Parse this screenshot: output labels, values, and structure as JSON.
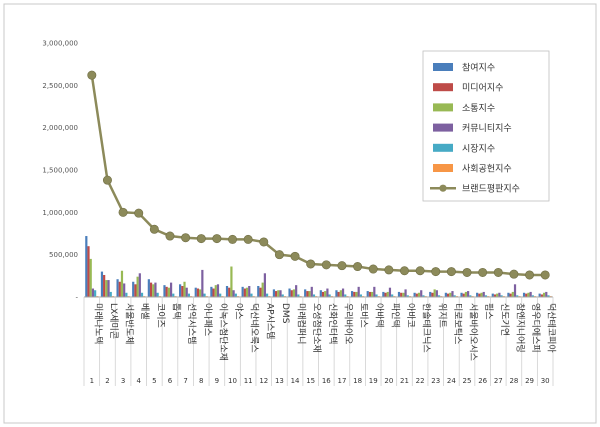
{
  "chart_data": {
    "type": "bar",
    "title": "",
    "xlabel": "",
    "ylabel": "",
    "ylim": [
      0,
      3000000
    ],
    "yticks": [
      0,
      500000,
      1000000,
      1500000,
      2000000,
      2500000,
      3000000
    ],
    "ytick_labels": [
      "-",
      "500,000",
      "1,000,000",
      "1,500,000",
      "2,000,000",
      "2,500,000",
      "3,000,000"
    ],
    "grid": false,
    "legend_position": "top-right",
    "ranks": [
      "1",
      "2",
      "3",
      "4",
      "5",
      "6",
      "7",
      "8",
      "9",
      "10",
      "11",
      "12",
      "13",
      "14",
      "15",
      "16",
      "17",
      "18",
      "19",
      "20",
      "21",
      "22",
      "23",
      "24",
      "25",
      "26",
      "27",
      "28",
      "29",
      "30"
    ],
    "categories": [
      "미래나노텍",
      "LX세미콘",
      "서울반도체",
      "베셀",
      "코이즈",
      "톱텍",
      "선익시스템",
      "아나패스",
      "이녹스첨단소재",
      "야스",
      "덕산네오룩스",
      "AP시스템",
      "DMS",
      "미래컴퍼니",
      "오성첨단소재",
      "신화인터텍",
      "우리바이오",
      "토비스",
      "아바텍",
      "파인텍",
      "아바코",
      "한솔테크닉스",
      "위지트",
      "티로보틱스",
      "서울바이오시스",
      "핌스",
      "신도기연",
      "참엔지니어링",
      "영우디에스피",
      "덕산테코피아"
    ],
    "series": [
      {
        "name": "참여지수",
        "color": "#4a7ebb",
        "chart": "bar",
        "values": [
          720000,
          300000,
          210000,
          180000,
          210000,
          140000,
          150000,
          110000,
          120000,
          130000,
          120000,
          130000,
          90000,
          100000,
          90000,
          80000,
          80000,
          70000,
          70000,
          60000,
          60000,
          50000,
          60000,
          50000,
          50000,
          50000,
          40000,
          50000,
          50000,
          40000
        ]
      },
      {
        "name": "미디어지수",
        "color": "#be4b48",
        "chart": "bar",
        "values": [
          600000,
          260000,
          180000,
          150000,
          170000,
          120000,
          130000,
          100000,
          100000,
          110000,
          100000,
          110000,
          70000,
          80000,
          70000,
          60000,
          60000,
          60000,
          60000,
          50000,
          50000,
          40000,
          50000,
          40000,
          40000,
          40000,
          30000,
          40000,
          40000,
          30000
        ]
      },
      {
        "name": "소통지수",
        "color": "#98b954",
        "chart": "bar",
        "values": [
          450000,
          200000,
          310000,
          240000,
          150000,
          110000,
          180000,
          90000,
          140000,
          360000,
          110000,
          170000,
          80000,
          90000,
          70000,
          70000,
          80000,
          60000,
          60000,
          60000,
          50000,
          50000,
          90000,
          50000,
          60000,
          50000,
          40000,
          60000,
          50000,
          50000
        ]
      },
      {
        "name": "커뮤니티지수",
        "color": "#7d60a0",
        "chart": "bar",
        "values": [
          100000,
          200000,
          160000,
          280000,
          170000,
          170000,
          110000,
          320000,
          150000,
          80000,
          130000,
          280000,
          80000,
          140000,
          120000,
          100000,
          100000,
          120000,
          120000,
          110000,
          90000,
          80000,
          80000,
          70000,
          70000,
          60000,
          50000,
          150000,
          60000,
          60000
        ]
      },
      {
        "name": "시장지수",
        "color": "#46aac5",
        "chart": "bar",
        "values": [
          80000,
          60000,
          50000,
          50000,
          50000,
          40000,
          40000,
          40000,
          40000,
          40000,
          40000,
          40000,
          30000,
          30000,
          30000,
          30000,
          30000,
          30000,
          30000,
          30000,
          20000,
          20000,
          20000,
          20000,
          20000,
          20000,
          20000,
          20000,
          20000,
          20000
        ]
      },
      {
        "name": "사회공헌지수",
        "color": "#f79646",
        "chart": "bar",
        "values": [
          10000,
          10000,
          10000,
          10000,
          10000,
          10000,
          10000,
          10000,
          10000,
          10000,
          10000,
          10000,
          10000,
          10000,
          10000,
          10000,
          10000,
          10000,
          10000,
          10000,
          10000,
          10000,
          10000,
          10000,
          10000,
          10000,
          10000,
          10000,
          10000,
          10000
        ]
      },
      {
        "name": "브랜드평판지수",
        "color": "#8c8a5a",
        "chart": "line",
        "values": [
          2620000,
          1380000,
          1000000,
          990000,
          800000,
          720000,
          700000,
          690000,
          690000,
          680000,
          680000,
          650000,
          500000,
          480000,
          390000,
          380000,
          370000,
          360000,
          330000,
          320000,
          310000,
          310000,
          300000,
          300000,
          290000,
          290000,
          290000,
          270000,
          260000,
          260000
        ]
      }
    ]
  }
}
